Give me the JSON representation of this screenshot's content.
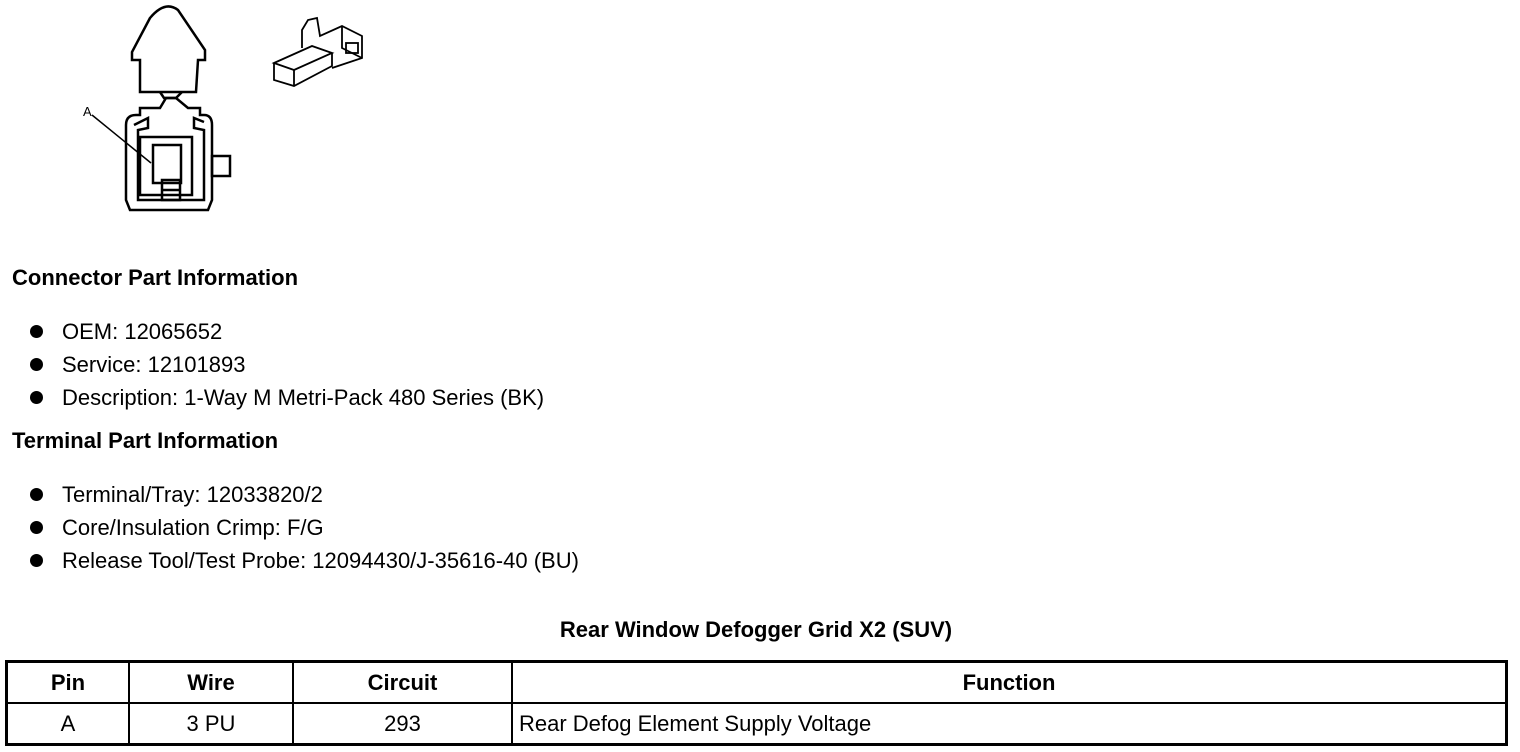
{
  "figure": {
    "callout_label": "A"
  },
  "connector": {
    "heading": "Connector Part Information",
    "items": [
      "OEM: 12065652",
      "Service: 12101893",
      "Description: 1-Way M Metri-Pack 480 Series (BK)"
    ]
  },
  "terminal": {
    "heading": "Terminal Part Information",
    "items": [
      "Terminal/Tray: 12033820/2",
      "Core/Insulation Crimp: F/G",
      "Release Tool/Test Probe: 12094430/J-35616-40 (BU)"
    ]
  },
  "table": {
    "title": "Rear Window Defogger Grid X2 (SUV)",
    "headers": [
      "Pin",
      "Wire",
      "Circuit",
      "Function"
    ],
    "rows": [
      [
        "A",
        "3 PU",
        "293",
        "Rear Defog Element Supply Voltage"
      ]
    ]
  }
}
